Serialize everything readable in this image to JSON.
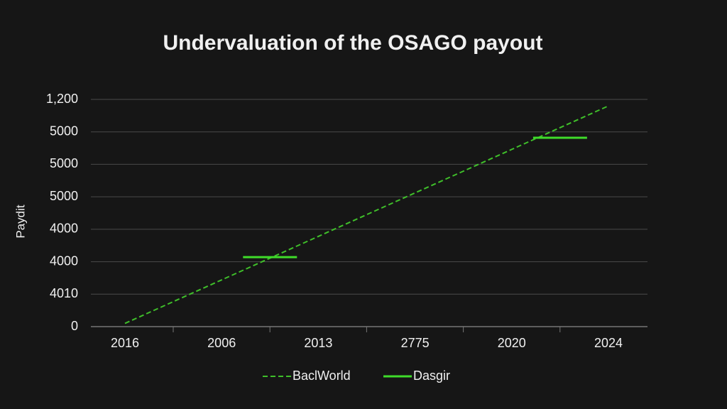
{
  "chart_data": {
    "type": "line",
    "title": "Undervaluation of the OSAGO payout",
    "y_label": "Paydit",
    "categories": [
      "2016",
      "2006",
      "2013",
      "2775",
      "2020",
      "2024"
    ],
    "series": [
      {
        "name": "BaclWorld",
        "color": "#3fbf2a",
        "style": "dashed",
        "values": [
          0.1,
          1.44,
          2.78,
          4.12,
          5.46,
          6.8
        ]
      },
      {
        "name": "Dasgir",
        "color": "#3fdc2a",
        "style": "segment",
        "values": [
          null,
          2.14,
          null,
          null,
          5.82,
          null
        ]
      }
    ],
    "ylim": [
      0,
      7
    ],
    "yticks": [
      0,
      {
        "value": 1,
        "label": "4010"
      },
      {
        "value": 2,
        "label": "4000"
      },
      {
        "value": 3,
        "label": "4000"
      },
      {
        "value": 4,
        "label": "5000"
      },
      {
        "value": 5,
        "label": "5000"
      },
      {
        "value": 6,
        "label": "5000"
      },
      {
        "value": 7,
        "label": "1,200"
      }
    ],
    "grid": true,
    "legend": "bottom"
  }
}
